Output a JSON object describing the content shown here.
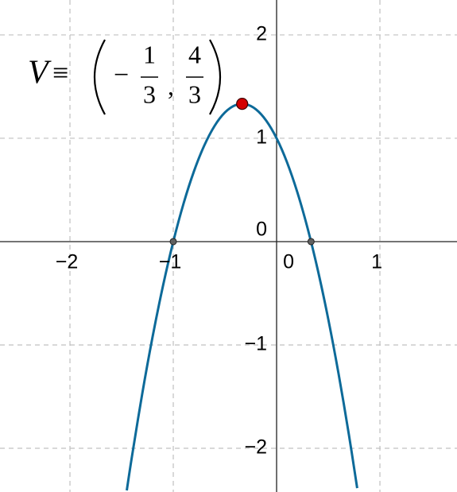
{
  "chart_data": {
    "type": "line",
    "x": [
      -1.45,
      -1.4,
      -1.3,
      -1.2,
      -1.1,
      -1.0,
      -0.9,
      -0.8,
      -0.7,
      -0.6,
      -0.5,
      -0.4,
      -0.3,
      -0.2,
      -0.1,
      0,
      0.1,
      0.2,
      0.3,
      0.4,
      0.5,
      0.6,
      0.7,
      0.78
    ],
    "values": [
      -2.4075,
      -2.08,
      -1.47,
      -0.92,
      -0.43,
      0,
      0.37,
      0.68,
      0.93,
      1.12,
      1.25,
      1.32,
      1.33,
      1.28,
      1.17,
      1,
      0.77,
      0.48,
      0.13,
      -0.28,
      -0.75,
      -1.28,
      -1.87,
      -2.3852
    ],
    "color": "#0d6a99",
    "points": [
      {
        "x": -0.3333,
        "y": 1.3333,
        "color": "#d40000"
      },
      {
        "x": -1,
        "y": 0,
        "color": "#606060"
      },
      {
        "x": 0.3333,
        "y": 0,
        "color": "#606060"
      }
    ],
    "annotation": {
      "name": "V",
      "relation": "≡",
      "x_sign": "−",
      "x_num": "1",
      "x_den": "3",
      "y_num": "4",
      "y_den": "3"
    },
    "xlim": [
      -2.677,
      1.746
    ],
    "ylim": [
      -2.423,
      2.338
    ],
    "xticks": [
      {
        "value": -2,
        "label": "−2"
      },
      {
        "value": -1,
        "label": "−1"
      },
      0,
      1
    ],
    "yticks": [
      {
        "value": -2,
        "label": "−2"
      },
      {
        "value": -1,
        "label": "−1"
      },
      0,
      1,
      2
    ],
    "grid": true
  }
}
